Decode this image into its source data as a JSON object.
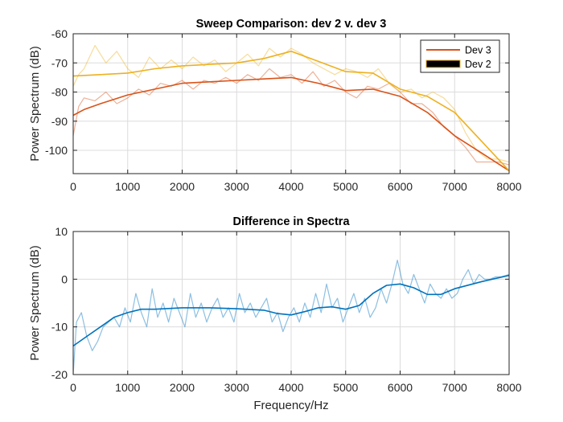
{
  "colors": {
    "dev3": "#d95319",
    "dev2": "#edb120",
    "dev2_legend_swatch": "#000000",
    "diff": "#0072bd"
  },
  "chart_data": [
    {
      "type": "line",
      "title": "Sweep Comparison: dev 2 v. dev 3",
      "xlabel": "",
      "ylabel": "Power Spectrum (dB)",
      "xlim": [
        0,
        8000
      ],
      "ylim": [
        -108,
        -60
      ],
      "xticks": [
        0,
        1000,
        2000,
        3000,
        4000,
        5000,
        6000,
        7000,
        8000
      ],
      "yticks": [
        -100,
        -90,
        -80,
        -70,
        -60
      ],
      "grid": true,
      "legend": {
        "location": "top-right",
        "entries": [
          "Dev 3",
          "Dev 2"
        ]
      },
      "series": [
        {
          "name": "Dev 3",
          "role": "smoothed",
          "x": [
            0,
            200,
            500,
            1000,
            1500,
            2000,
            2500,
            3000,
            3500,
            4000,
            4500,
            5000,
            5500,
            6000,
            6500,
            7000,
            7500,
            8000
          ],
          "y": [
            -88,
            -86,
            -84,
            -81,
            -79,
            -77,
            -76.5,
            -76,
            -75.5,
            -75,
            -77,
            -79.5,
            -79,
            -81.5,
            -87,
            -95,
            -101,
            -107
          ]
        },
        {
          "name": "Dev 3",
          "role": "raw",
          "x": [
            0,
            100,
            200,
            400,
            600,
            800,
            1000,
            1200,
            1400,
            1600,
            1800,
            2000,
            2200,
            2400,
            2600,
            2800,
            3000,
            3200,
            3400,
            3600,
            3800,
            4000,
            4200,
            4400,
            4600,
            4800,
            5000,
            5200,
            5400,
            5600,
            5800,
            6000,
            6200,
            6400,
            6600,
            6800,
            7000,
            7200,
            7400,
            7600,
            7800,
            8000
          ],
          "y": [
            -95,
            -85,
            -82,
            -83,
            -80,
            -84,
            -82,
            -79,
            -81,
            -77,
            -78,
            -76,
            -79,
            -76,
            -77,
            -75,
            -77,
            -74,
            -76,
            -72,
            -75,
            -74,
            -77,
            -73,
            -78,
            -76,
            -80,
            -82,
            -78,
            -79,
            -77,
            -80,
            -84,
            -84,
            -87,
            -92,
            -95,
            -99,
            -104,
            -104,
            -104,
            -105
          ]
        },
        {
          "name": "Dev 2",
          "role": "smoothed",
          "x": [
            0,
            500,
            1000,
            1500,
            2000,
            2500,
            3000,
            3500,
            4000,
            4500,
            5000,
            5500,
            6000,
            6500,
            7000,
            7500,
            8000
          ],
          "y": [
            -74.5,
            -74,
            -73.5,
            -72,
            -71,
            -70.5,
            -70,
            -68.5,
            -66,
            -69.5,
            -73,
            -73.5,
            -79,
            -81.5,
            -87,
            -97,
            -107
          ]
        },
        {
          "name": "Dev 2",
          "role": "raw",
          "x": [
            0,
            100,
            200,
            400,
            600,
            800,
            1000,
            1200,
            1400,
            1600,
            1800,
            2000,
            2200,
            2400,
            2600,
            2800,
            3000,
            3200,
            3400,
            3600,
            3800,
            4000,
            4200,
            4400,
            4600,
            4800,
            5000,
            5200,
            5400,
            5600,
            5800,
            6000,
            6200,
            6400,
            6600,
            6800,
            7000,
            7200,
            7400,
            7600,
            7800,
            8000
          ],
          "y": [
            -78,
            -74,
            -72,
            -64,
            -70,
            -66,
            -72,
            -75,
            -68,
            -72,
            -69,
            -72,
            -68,
            -71,
            -69,
            -73,
            -70,
            -67,
            -71,
            -65,
            -68,
            -65,
            -67,
            -70,
            -72,
            -74,
            -72,
            -73,
            -75,
            -72,
            -77,
            -80,
            -79,
            -82,
            -80,
            -82,
            -86,
            -94,
            -100,
            -103,
            -103,
            -104
          ]
        }
      ]
    },
    {
      "type": "line",
      "title": "Difference in Spectra",
      "xlabel": "Frequency/Hz",
      "ylabel": "Power Spectrum (dB)",
      "xlim": [
        0,
        8000
      ],
      "ylim": [
        -20,
        10
      ],
      "xticks": [
        0,
        1000,
        2000,
        3000,
        4000,
        5000,
        6000,
        7000,
        8000
      ],
      "yticks": [
        -20,
        -10,
        0,
        10
      ],
      "grid": true,
      "series": [
        {
          "name": "Difference",
          "role": "smoothed",
          "x": [
            0,
            250,
            500,
            750,
            1000,
            1250,
            1500,
            2000,
            2500,
            3000,
            3500,
            3750,
            4000,
            4250,
            4500,
            4750,
            5000,
            5250,
            5500,
            5750,
            6000,
            6250,
            6500,
            6750,
            7000,
            7500,
            8000
          ],
          "y": [
            -14,
            -12,
            -10,
            -8,
            -7,
            -6.3,
            -6.3,
            -6,
            -6,
            -6.2,
            -6.5,
            -7.2,
            -7.5,
            -6.8,
            -6,
            -5.8,
            -6.3,
            -5.5,
            -3,
            -1.3,
            -1,
            -1.8,
            -3.2,
            -3.2,
            -2,
            -0.5,
            0.8
          ]
        },
        {
          "name": "Difference",
          "role": "raw",
          "x": [
            0,
            60,
            150,
            250,
            350,
            450,
            550,
            650,
            750,
            850,
            950,
            1050,
            1150,
            1250,
            1350,
            1450,
            1550,
            1650,
            1750,
            1850,
            1950,
            2050,
            2150,
            2250,
            2350,
            2450,
            2550,
            2650,
            2750,
            2850,
            2950,
            3050,
            3150,
            3250,
            3350,
            3450,
            3550,
            3650,
            3750,
            3850,
            3950,
            4050,
            4150,
            4250,
            4350,
            4450,
            4550,
            4650,
            4750,
            4850,
            4950,
            5050,
            5150,
            5250,
            5350,
            5450,
            5550,
            5650,
            5750,
            5850,
            5950,
            6050,
            6150,
            6250,
            6350,
            6450,
            6550,
            6650,
            6750,
            6850,
            6950,
            7050,
            7150,
            7250,
            7350,
            7450,
            7550,
            7650,
            7750,
            7850,
            8000
          ],
          "y": [
            -20,
            -9,
            -7,
            -12,
            -15,
            -13,
            -10,
            -9,
            -8,
            -10,
            -6,
            -9,
            -3,
            -7,
            -10,
            -2,
            -8,
            -5,
            -9,
            -4,
            -7,
            -10,
            -3,
            -8,
            -5,
            -9,
            -6,
            -4,
            -8,
            -6,
            -9,
            -3,
            -7,
            -5,
            -8,
            -6,
            -4,
            -9,
            -7,
            -11,
            -8,
            -6,
            -9,
            -5,
            -8,
            -3,
            -7,
            -1,
            -6,
            -4,
            -9,
            -6,
            -3,
            -7,
            -4,
            -8,
            -6,
            -2,
            -5,
            -1,
            4,
            -1,
            -3,
            1,
            -2,
            -5,
            -1,
            -3,
            -4,
            -2,
            -4,
            -3,
            0,
            2,
            -1,
            1,
            0,
            0,
            0.5,
            0.5,
            1
          ]
        }
      ]
    }
  ]
}
